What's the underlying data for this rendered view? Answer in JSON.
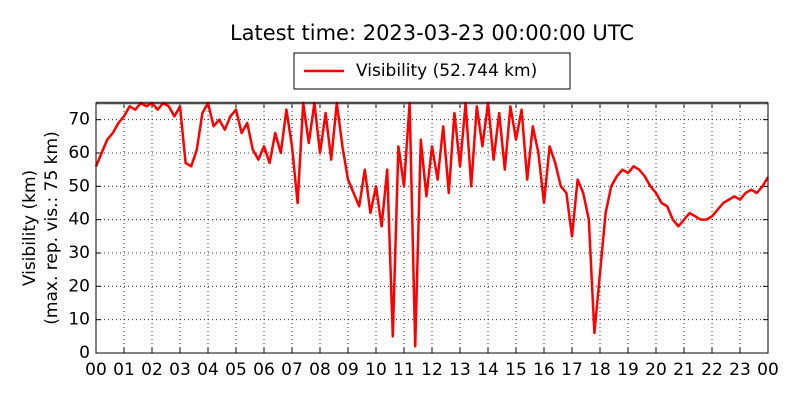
{
  "chart_data": {
    "type": "line",
    "title": "Latest time: 2023-03-23 00:00:00 UTC",
    "y_label": [
      "Visibility (km)",
      "(max. rep. vis.: 75 km)"
    ],
    "x": [
      0,
      0.2,
      0.4,
      0.6,
      0.8,
      1,
      1.2,
      1.4,
      1.6,
      1.8,
      2,
      2.2,
      2.4,
      2.6,
      2.8,
      3,
      3.2,
      3.4,
      3.6,
      3.8,
      4,
      4.2,
      4.4,
      4.6,
      4.8,
      5,
      5.2,
      5.4,
      5.6,
      5.8,
      6,
      6.2,
      6.4,
      6.6,
      6.8,
      7,
      7.2,
      7.4,
      7.6,
      7.8,
      8,
      8.2,
      8.4,
      8.6,
      8.8,
      9,
      9.2,
      9.4,
      9.6,
      9.8,
      10,
      10.2,
      10.4,
      10.6,
      10.8,
      11,
      11.2,
      11.4,
      11.6,
      11.8,
      12,
      12.2,
      12.4,
      12.6,
      12.8,
      13,
      13.2,
      13.4,
      13.6,
      13.8,
      14,
      14.2,
      14.4,
      14.6,
      14.8,
      15,
      15.2,
      15.4,
      15.6,
      15.8,
      16,
      16.2,
      16.4,
      16.6,
      16.8,
      17,
      17.2,
      17.4,
      17.6,
      17.8,
      18,
      18.2,
      18.4,
      18.6,
      18.8,
      19,
      19.2,
      19.4,
      19.6,
      19.8,
      20,
      20.2,
      20.4,
      20.6,
      20.8,
      21,
      21.2,
      21.4,
      21.6,
      21.8,
      22,
      22.2,
      22.4,
      22.6,
      22.8,
      23,
      23.2,
      23.4,
      23.6,
      23.8,
      24
    ],
    "series": [
      {
        "name": "Visibility (52.744 km)",
        "color": "#ff0000",
        "values": [
          56,
          60,
          64,
          66,
          69,
          71,
          74,
          73,
          75,
          74,
          75,
          73,
          75,
          74,
          71,
          74,
          57,
          56,
          61,
          72,
          75,
          68,
          70,
          67,
          71,
          73,
          66,
          69,
          61,
          58,
          62,
          57,
          66,
          60,
          73,
          62,
          45,
          75,
          63,
          75,
          60,
          72,
          58,
          75,
          62,
          52,
          48,
          44,
          55,
          42,
          50,
          38,
          55,
          5,
          62,
          50,
          75,
          2,
          64,
          47,
          62,
          52,
          68,
          48,
          72,
          56,
          75,
          50,
          74,
          62,
          75,
          58,
          72,
          55,
          74,
          64,
          73,
          52,
          68,
          60,
          45,
          62,
          57,
          50,
          48,
          35,
          52,
          48,
          40,
          6,
          24,
          42,
          50,
          53,
          55,
          54,
          56,
          55,
          53,
          50,
          48,
          45,
          44,
          40,
          38,
          40,
          42,
          41,
          40,
          40,
          41,
          43,
          45,
          46,
          47,
          46,
          48,
          49,
          48,
          50,
          52.744
        ]
      }
    ],
    "xlim": [
      0,
      24
    ],
    "xticks": [
      {
        "value": 0,
        "label": "00"
      },
      {
        "value": 1,
        "label": "01"
      },
      {
        "value": 2,
        "label": "02"
      },
      {
        "value": 3,
        "label": "03"
      },
      {
        "value": 4,
        "label": "04"
      },
      {
        "value": 5,
        "label": "05"
      },
      {
        "value": 6,
        "label": "06"
      },
      {
        "value": 7,
        "label": "07"
      },
      {
        "value": 8,
        "label": "08"
      },
      {
        "value": 9,
        "label": "09"
      },
      {
        "value": 10,
        "label": "10"
      },
      {
        "value": 11,
        "label": "11"
      },
      {
        "value": 12,
        "label": "12"
      },
      {
        "value": 13,
        "label": "13"
      },
      {
        "value": 14,
        "label": "14"
      },
      {
        "value": 15,
        "label": "15"
      },
      {
        "value": 16,
        "label": "16"
      },
      {
        "value": 17,
        "label": "17"
      },
      {
        "value": 18,
        "label": "18"
      },
      {
        "value": 19,
        "label": "19"
      },
      {
        "value": 20,
        "label": "20"
      },
      {
        "value": 21,
        "label": "21"
      },
      {
        "value": 22,
        "label": "22"
      },
      {
        "value": 23,
        "label": "23"
      },
      {
        "value": 24,
        "label": "00"
      }
    ],
    "ylim": [
      0,
      75
    ],
    "yticks": [
      0,
      10,
      20,
      30,
      40,
      50,
      60,
      70
    ],
    "grid": true,
    "legend": "top"
  }
}
